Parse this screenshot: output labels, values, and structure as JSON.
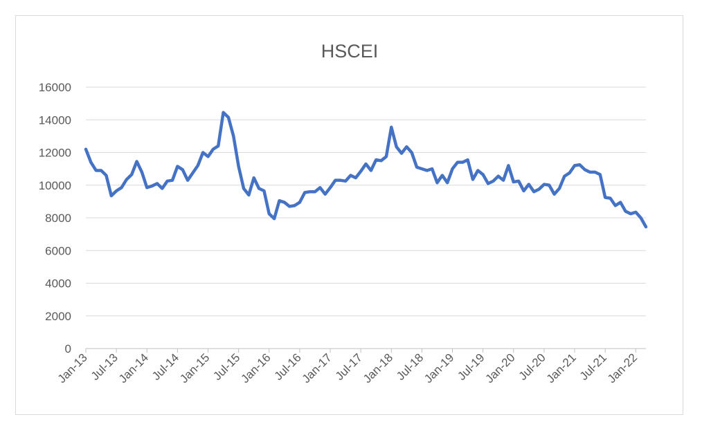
{
  "chart_data": {
    "type": "line",
    "title": "HSCEI",
    "xlabel": "",
    "ylabel": "",
    "ylim": [
      0,
      16000
    ],
    "yticks": [
      0,
      2000,
      4000,
      6000,
      8000,
      10000,
      12000,
      14000,
      16000
    ],
    "xticks": [
      "Jan-13",
      "Jul-13",
      "Jan-14",
      "Jul-14",
      "Jan-15",
      "Jul-15",
      "Jan-16",
      "Jul-16",
      "Jan-17",
      "Jul-17",
      "Jan-18",
      "Jul-18",
      "Jan-19",
      "Jul-19",
      "Jan-20",
      "Jul-20",
      "Jan-21",
      "Jul-21",
      "Jan-22"
    ],
    "grid": "horizontal",
    "legend": "none",
    "color": "#4472C4",
    "series": [
      {
        "name": "",
        "x": [
          "Jan-13",
          "Feb-13",
          "Mar-13",
          "Apr-13",
          "May-13",
          "Jun-13",
          "Jul-13",
          "Aug-13",
          "Sep-13",
          "Oct-13",
          "Nov-13",
          "Dec-13",
          "Jan-14",
          "Feb-14",
          "Mar-14",
          "Apr-14",
          "May-14",
          "Jun-14",
          "Jul-14",
          "Aug-14",
          "Sep-14",
          "Oct-14",
          "Nov-14",
          "Dec-14",
          "Jan-15",
          "Feb-15",
          "Mar-15",
          "Apr-15",
          "May-15",
          "Jun-15",
          "Jul-15",
          "Aug-15",
          "Sep-15",
          "Oct-15",
          "Nov-15",
          "Dec-15",
          "Jan-16",
          "Feb-16",
          "Mar-16",
          "Apr-16",
          "May-16",
          "Jun-16",
          "Jul-16",
          "Aug-16",
          "Sep-16",
          "Oct-16",
          "Nov-16",
          "Dec-16",
          "Jan-17",
          "Feb-17",
          "Mar-17",
          "Apr-17",
          "May-17",
          "Jun-17",
          "Jul-17",
          "Aug-17",
          "Sep-17",
          "Oct-17",
          "Nov-17",
          "Dec-17",
          "Jan-18",
          "Feb-18",
          "Mar-18",
          "Apr-18",
          "May-18",
          "Jun-18",
          "Jul-18",
          "Aug-18",
          "Sep-18",
          "Oct-18",
          "Nov-18",
          "Dec-18",
          "Jan-19",
          "Feb-19",
          "Mar-19",
          "Apr-19",
          "May-19",
          "Jun-19",
          "Jul-19",
          "Aug-19",
          "Sep-19",
          "Oct-19",
          "Nov-19",
          "Dec-19",
          "Jan-20",
          "Feb-20",
          "Mar-20",
          "Apr-20",
          "May-20",
          "Jun-20",
          "Jul-20",
          "Aug-20",
          "Sep-20",
          "Oct-20",
          "Nov-20",
          "Dec-20",
          "Jan-21",
          "Feb-21",
          "Mar-21",
          "Apr-21",
          "May-21",
          "Jun-21",
          "Jul-21",
          "Aug-21",
          "Sep-21",
          "Oct-21",
          "Nov-21",
          "Dec-21",
          "Jan-22",
          "Feb-22",
          "Mar-22"
        ],
        "values": [
          12200,
          11400,
          10900,
          10900,
          10600,
          9350,
          9650,
          9850,
          10350,
          10650,
          11450,
          10800,
          9850,
          9950,
          10100,
          9800,
          10250,
          10300,
          11150,
          10950,
          10300,
          10750,
          11200,
          12000,
          11750,
          12200,
          12400,
          14450,
          14150,
          13000,
          11150,
          9800,
          9400,
          10450,
          9800,
          9650,
          8250,
          7950,
          9050,
          8950,
          8700,
          8750,
          8950,
          9550,
          9600,
          9600,
          9850,
          9450,
          9850,
          10300,
          10300,
          10250,
          10600,
          10450,
          10850,
          11300,
          10900,
          11550,
          11500,
          11750,
          13550,
          12350,
          11950,
          12350,
          12000,
          11100,
          11000,
          10900,
          11000,
          10150,
          10600,
          10150,
          11000,
          11400,
          11400,
          11550,
          10350,
          10900,
          10650,
          10100,
          10250,
          10550,
          10300,
          11200,
          10200,
          10250,
          9650,
          10050,
          9600,
          9750,
          10050,
          10000,
          9450,
          9800,
          10550,
          10750,
          11200,
          11250,
          10950,
          10800,
          10800,
          10650,
          9250,
          9200,
          8750,
          8950,
          8400,
          8250,
          8350,
          8000,
          7450
        ]
      }
    ]
  }
}
